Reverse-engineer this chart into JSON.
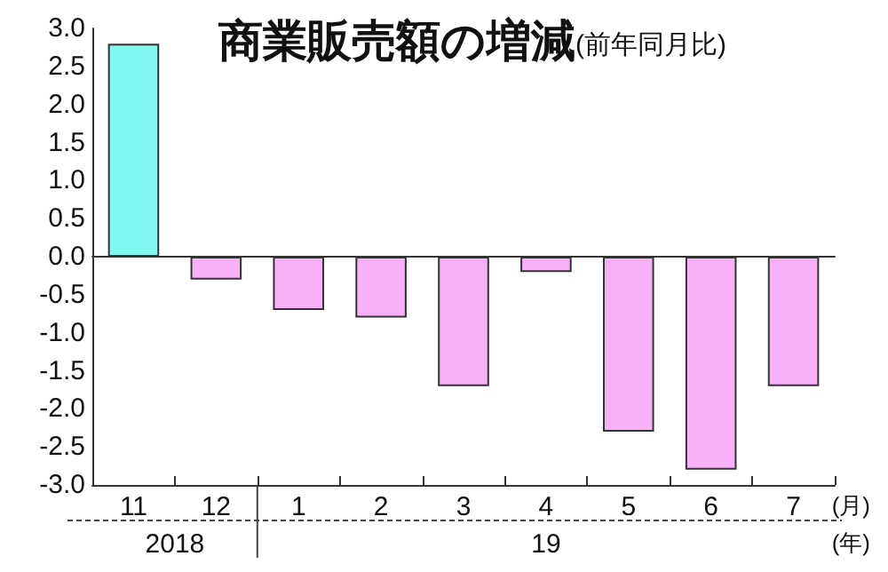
{
  "chart_data": {
    "type": "bar",
    "title": "商業販売額の増減",
    "subtitle": "(前年同月比)",
    "xlabel": "(月)",
    "categories": [
      "11",
      "12",
      "1",
      "2",
      "3",
      "4",
      "5",
      "6",
      "7"
    ],
    "values": [
      2.8,
      -0.3,
      -0.7,
      -0.8,
      -1.7,
      -0.2,
      -2.3,
      -2.8,
      -1.7
    ],
    "colors": [
      "#80f8f0",
      "#f8b0f8",
      "#f8b0f8",
      "#f8b0f8",
      "#f8b0f8",
      "#f8b0f8",
      "#f8b0f8",
      "#f8b0f8",
      "#f8b0f8"
    ],
    "ylim": [
      -3.0,
      3.0
    ],
    "yticks": [
      {
        "value": -3,
        "label": "-3.0"
      },
      {
        "value": -2.5,
        "label": "-2.5"
      },
      {
        "value": -2,
        "label": "-2.0"
      },
      {
        "value": -1.5,
        "label": "-1.5"
      },
      {
        "value": -1,
        "label": "-1.0"
      },
      {
        "value": -0.5,
        "label": "-0.5"
      },
      {
        "value": 0,
        "label": "0.0"
      },
      {
        "value": 0.5,
        "label": "0.5"
      },
      {
        "value": 1,
        "label": "1.0"
      },
      {
        "value": 1.5,
        "label": "1.5"
      },
      {
        "value": 2,
        "label": "2.0"
      },
      {
        "value": 2.5,
        "label": "2.5"
      },
      {
        "value": 3,
        "label": "3.0"
      }
    ],
    "annotations": [
      "2018",
      "19",
      "(年)"
    ]
  }
}
